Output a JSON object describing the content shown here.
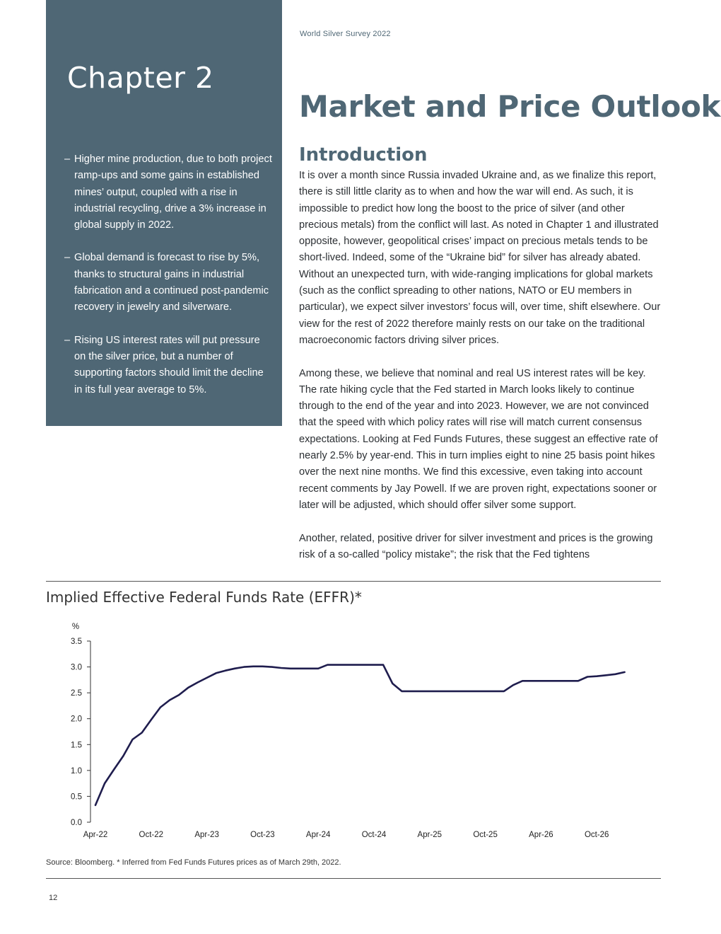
{
  "running_head": "World Silver Survey 2022",
  "sidebar": {
    "chapter": "Chapter 2",
    "bullets": [
      "Higher mine production, due to both project ramp-ups and some gains in established mines’ output, coupled with a rise in industrial recycling, drive a 3% increase in global supply in 2022.",
      "Global demand is forecast to rise by 5%, thanks to structural gains in industrial fabrication and a continued post-pandemic recovery in jewelry and silverware.",
      "Rising US interest rates will put pressure on the silver price, but a number of supporting factors should limit the decline in its full year average to 5%."
    ],
    "dash": "–"
  },
  "main": {
    "title": "Market and Price Outlook",
    "section_heading": "Introduction",
    "paragraphs": [
      "It is over a month since Russia invaded Ukraine and, as we finalize this report, there is still little clarity as to when and how the war will end. As such, it is impossible to predict how long the boost to the price of silver (and other precious metals) from the conflict will last. As noted in Chapter 1 and illustrated opposite, however, geopolitical crises’ impact on precious metals tends to be short-lived. Indeed, some of the “Ukraine bid” for silver has already abated. Without an unexpected turn, with wide-ranging implications for global markets (such as the conflict spreading to other nations, NATO or EU members in particular), we expect silver investors’ focus will, over time, shift elsewhere. Our view for the rest of 2022 therefore mainly rests on our take on the traditional macroeconomic factors driving silver prices.",
      "Among these, we believe that nominal and real US interest rates will be key. The rate hiking cycle that the Fed started in March looks likely to continue through to the end of the year and into 2023. However, we are not convinced that the speed with which policy rates will rise will match current consensus expectations. Looking at Fed Funds Futures, these suggest an effective rate of nearly 2.5% by year-end. This in turn implies eight to nine 25 basis point hikes over the next nine months. We find this excessive, even taking into account recent comments by Jay Powell. If we are proven right, expectations sooner or later will be adjusted, which should offer silver some support.",
      "Another, related, positive driver for silver investment and prices is the growing risk of a so-called “policy mistake”; the risk that the Fed tightens"
    ]
  },
  "chart_data": {
    "type": "line",
    "title": "Implied Effective Federal Funds Rate (EFFR)*",
    "ylabel": "%",
    "ylim": [
      0,
      3.5
    ],
    "yticks": [
      "0.0",
      "0.5",
      "1.0",
      "1.5",
      "2.0",
      "2.5",
      "3.0",
      "3.5"
    ],
    "xticks": [
      "Apr-22",
      "Oct-22",
      "Apr-23",
      "Oct-23",
      "Apr-24",
      "Oct-24",
      "Apr-25",
      "Oct-25",
      "Apr-26",
      "Oct-26"
    ],
    "grid": false,
    "series": [
      {
        "color": "#1f1d4e",
        "x": [
          0,
          1,
          2,
          3,
          4,
          5,
          6,
          7,
          8,
          9,
          10,
          11,
          12,
          13,
          14,
          15,
          16,
          17,
          18,
          19,
          20,
          21,
          22,
          23,
          24,
          25,
          26,
          27,
          28,
          29,
          30,
          31,
          32,
          33,
          34,
          35,
          36,
          37,
          38,
          39,
          40,
          41,
          42,
          43,
          44,
          45,
          46,
          47,
          48,
          49,
          50,
          51,
          52,
          53,
          54,
          55,
          56,
          57
        ],
        "values": [
          0.33,
          0.75,
          1.02,
          1.28,
          1.6,
          1.73,
          1.98,
          2.22,
          2.36,
          2.46,
          2.6,
          2.7,
          2.79,
          2.88,
          2.93,
          2.97,
          3.0,
          3.01,
          3.01,
          3.0,
          2.98,
          2.97,
          2.97,
          2.97,
          2.97,
          3.04,
          3.04,
          3.04,
          3.04,
          3.04,
          3.04,
          3.04,
          2.68,
          2.53,
          2.53,
          2.53,
          2.53,
          2.53,
          2.53,
          2.53,
          2.53,
          2.53,
          2.53,
          2.53,
          2.53,
          2.65,
          2.73,
          2.73,
          2.73,
          2.73,
          2.73,
          2.73,
          2.73,
          2.81,
          2.82,
          2.84,
          2.86,
          2.9
        ]
      }
    ]
  },
  "source_note": "Source: Bloomberg. * Inferred from Fed Funds Futures prices as of March 29th, 2022.",
  "page_number": "12"
}
